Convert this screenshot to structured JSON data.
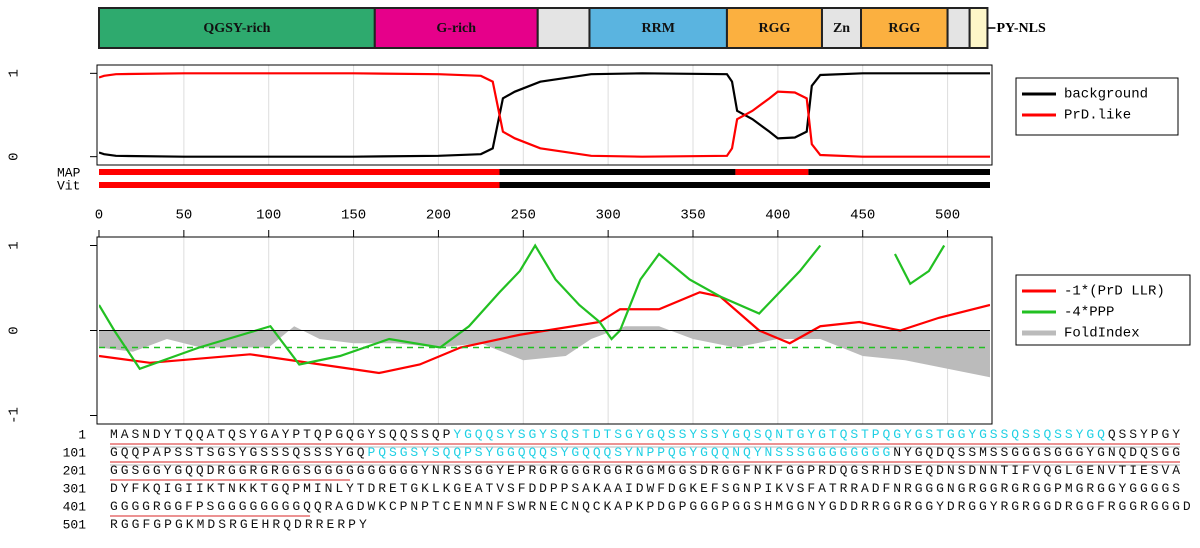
{
  "chart_data": [
    {
      "type": "domains",
      "xlim": [
        0,
        525
      ],
      "segments": [
        {
          "label": "QGSY-rich",
          "start": 0,
          "end": 162.5,
          "color": "#2eaa6e"
        },
        {
          "label": "G-rich",
          "start": 162.5,
          "end": 258.5,
          "color": "#e6008a"
        },
        {
          "start": 258.5,
          "end": 289,
          "color": "#e4e4e4"
        },
        {
          "label": "RRM",
          "start": 289,
          "end": 370,
          "color": "#5ab4e0"
        },
        {
          "label": "RGG",
          "start": 370,
          "end": 426,
          "color": "#fbb040"
        },
        {
          "label": "Zn",
          "start": 426,
          "end": 449,
          "color": "#e4e4e4"
        },
        {
          "label": "RGG",
          "start": 449,
          "end": 500,
          "color": "#fbb040"
        },
        {
          "start": 500,
          "end": 513,
          "color": "#e4e4e4"
        },
        {
          "start": 513,
          "end": 523.5,
          "color": "#fdf6c8"
        }
      ],
      "end_label": "PY-NLS"
    },
    {
      "type": "line",
      "xlim": [
        0,
        525
      ],
      "ylim": [
        -0.1,
        1.1
      ],
      "yticks": [
        0,
        1
      ],
      "xticks": [
        0,
        50,
        100,
        150,
        200,
        250,
        300,
        350,
        400,
        450,
        500
      ],
      "grid": true,
      "series": [
        {
          "name": "background",
          "color": "#000000",
          "x": [
            0,
            3,
            10,
            50,
            150,
            200,
            225,
            232,
            236,
            238,
            245,
            260,
            290,
            320,
            370,
            373,
            376,
            385,
            395,
            400,
            410,
            417,
            420,
            425,
            450,
            525
          ],
          "values": [
            0.05,
            0.03,
            0.01,
            0,
            0,
            0.01,
            0.03,
            0.1,
            0.5,
            0.7,
            0.78,
            0.9,
            0.99,
            1,
            0.99,
            0.9,
            0.55,
            0.45,
            0.3,
            0.22,
            0.23,
            0.3,
            0.85,
            0.98,
            1,
            1
          ]
        },
        {
          "name": "PrD.like",
          "color": "#ff0000",
          "x": [
            0,
            3,
            10,
            50,
            150,
            200,
            225,
            232,
            236,
            238,
            245,
            260,
            290,
            320,
            370,
            373,
            376,
            385,
            395,
            400,
            410,
            417,
            420,
            425,
            450,
            525
          ],
          "values": [
            0.95,
            0.97,
            0.99,
            1,
            1,
            0.99,
            0.97,
            0.9,
            0.5,
            0.3,
            0.22,
            0.1,
            0.01,
            0,
            0.01,
            0.1,
            0.45,
            0.55,
            0.7,
            0.78,
            0.77,
            0.7,
            0.15,
            0.02,
            0,
            0
          ]
        }
      ],
      "tracks": [
        {
          "name": "MAP",
          "segments": [
            {
              "start": 0,
              "end": 236,
              "color": "#ff0000"
            },
            {
              "start": 236,
              "end": 375,
              "color": "#000000"
            },
            {
              "start": 375,
              "end": 418,
              "color": "#ff0000"
            },
            {
              "start": 418,
              "end": 525,
              "color": "#000000"
            }
          ]
        },
        {
          "name": "Vit",
          "segments": [
            {
              "start": 0,
              "end": 236,
              "color": "#ff0000"
            },
            {
              "start": 236,
              "end": 525,
              "color": "#000000"
            }
          ]
        }
      ]
    },
    {
      "type": "line",
      "xlim": [
        0,
        525
      ],
      "ylim": [
        -1.1,
        1.1
      ],
      "yticks": [
        -1,
        0,
        1
      ],
      "grid": true,
      "threshold": {
        "value": -0.2,
        "color": "#22c022"
      },
      "series": [
        {
          "name": "-1*(PrD LLR)",
          "color": "#ff0000",
          "x": [
            0,
            30,
            89,
            148,
            165,
            189,
            213,
            248,
            295,
            307,
            330,
            354,
            366,
            389,
            407,
            425,
            448,
            472,
            495,
            525
          ],
          "values": [
            -0.3,
            -0.38,
            -0.28,
            -0.45,
            -0.5,
            -0.4,
            -0.2,
            -0.05,
            0.1,
            0.25,
            0.25,
            0.45,
            0.4,
            0,
            -0.15,
            0.05,
            0.1,
            0,
            0.15,
            0.3
          ]
        },
        {
          "name": "-4*PPP",
          "color": "#22c022",
          "x": [
            0,
            9,
            24,
            59,
            101,
            118,
            142,
            171,
            201,
            218,
            236,
            248,
            257,
            269,
            283,
            295,
            302,
            307,
            319,
            330,
            348,
            366,
            389,
            413,
            425,
            426,
            469,
            478,
            489,
            498
          ],
          "values": [
            0.3,
            0,
            -0.45,
            -0.2,
            0.05,
            -0.4,
            -0.3,
            -0.1,
            -0.2,
            0.05,
            0.45,
            0.7,
            1,
            0.6,
            0.3,
            0.1,
            -0.1,
            0,
            0.6,
            0.9,
            0.6,
            0.4,
            0.2,
            0.7,
            1,
            null,
            0.9,
            0.55,
            0.7,
            1
          ]
        },
        {
          "name": "FoldIndex",
          "color": "#bbbbbb",
          "area": true,
          "x": [
            0,
            20,
            40,
            60,
            80,
            100,
            115,
            130,
            150,
            175,
            200,
            225,
            250,
            275,
            290,
            310,
            330,
            350,
            375,
            400,
            425,
            450,
            475,
            500,
            525
          ],
          "values": [
            -0.2,
            -0.25,
            -0.1,
            -0.2,
            -0.2,
            -0.2,
            0.05,
            -0.1,
            -0.15,
            -0.15,
            -0.2,
            -0.15,
            -0.35,
            -0.3,
            -0.1,
            0.05,
            0.05,
            -0.1,
            -0.2,
            -0.1,
            -0.1,
            -0.3,
            -0.35,
            -0.45,
            -0.55
          ]
        }
      ]
    }
  ],
  "sequence": {
    "highlight_color": "#1fd0e4",
    "lines": [
      {
        "number": 1,
        "segments": [
          {
            "text": "MASNDYTQQATQSYGAYPTQPGQGYSQQSSQP"
          },
          {
            "text": "YGQQSYSGYSQSTDTSGYGQSSYSSYGQSQNTGYGTQSTPQGYGSTGGYGSSQSSQSSYGQ",
            "highlight": true
          },
          {
            "text": "QSSYPGY"
          }
        ]
      },
      {
        "number": 101,
        "segments": [
          {
            "text": "GQQPAPSSTSGSYGSSSQSSSYGQ"
          },
          {
            "text": "PQSGSYSQQPSYGGQQQSYGQQQSYNPPQGYGQQNQYNSSSGGGGGGGG",
            "highlight": true
          },
          {
            "text": "NYGQDQSSMSSGGGSGGGYGNQDQSGG"
          }
        ]
      },
      {
        "number": 201,
        "segments": [
          {
            "text": "GGSGGYGQQDRGGRGRGGSGGGGGGGGGGYNRSSGGYEPRGRGGGRGGRGGMGGSDRGGFNKFGGPRDQGSRHDSEQDNSDNNTIFVQGLGENVTIESVA"
          }
        ]
      },
      {
        "number": 301,
        "segments": [
          {
            "text": "DYFKQIGIIKTNKKTGQPMINLYTDRETGKLKGEATVSFDDPPSAKAAIDWFDGKEFSGNPIKVSFATRRADFNRGGGNGRGGRGRGGPMGRGGYGGGGS"
          }
        ]
      },
      {
        "number": 401,
        "segments": [
          {
            "text": "GGGGRGGFPSGGGGGGGGQQRAGDWKCPNPTCENMNFSWRNECNQCKAPKPDGPGGGPGGSHMGGNYGDDRRGGRGGYDRGGYRGRGGDRGGFRGGRGGGD"
          }
        ]
      },
      {
        "number": 501,
        "segments": [
          {
            "text": "RGGFGPGKMDSRGEHRQDRRERPY"
          }
        ]
      }
    ]
  }
}
